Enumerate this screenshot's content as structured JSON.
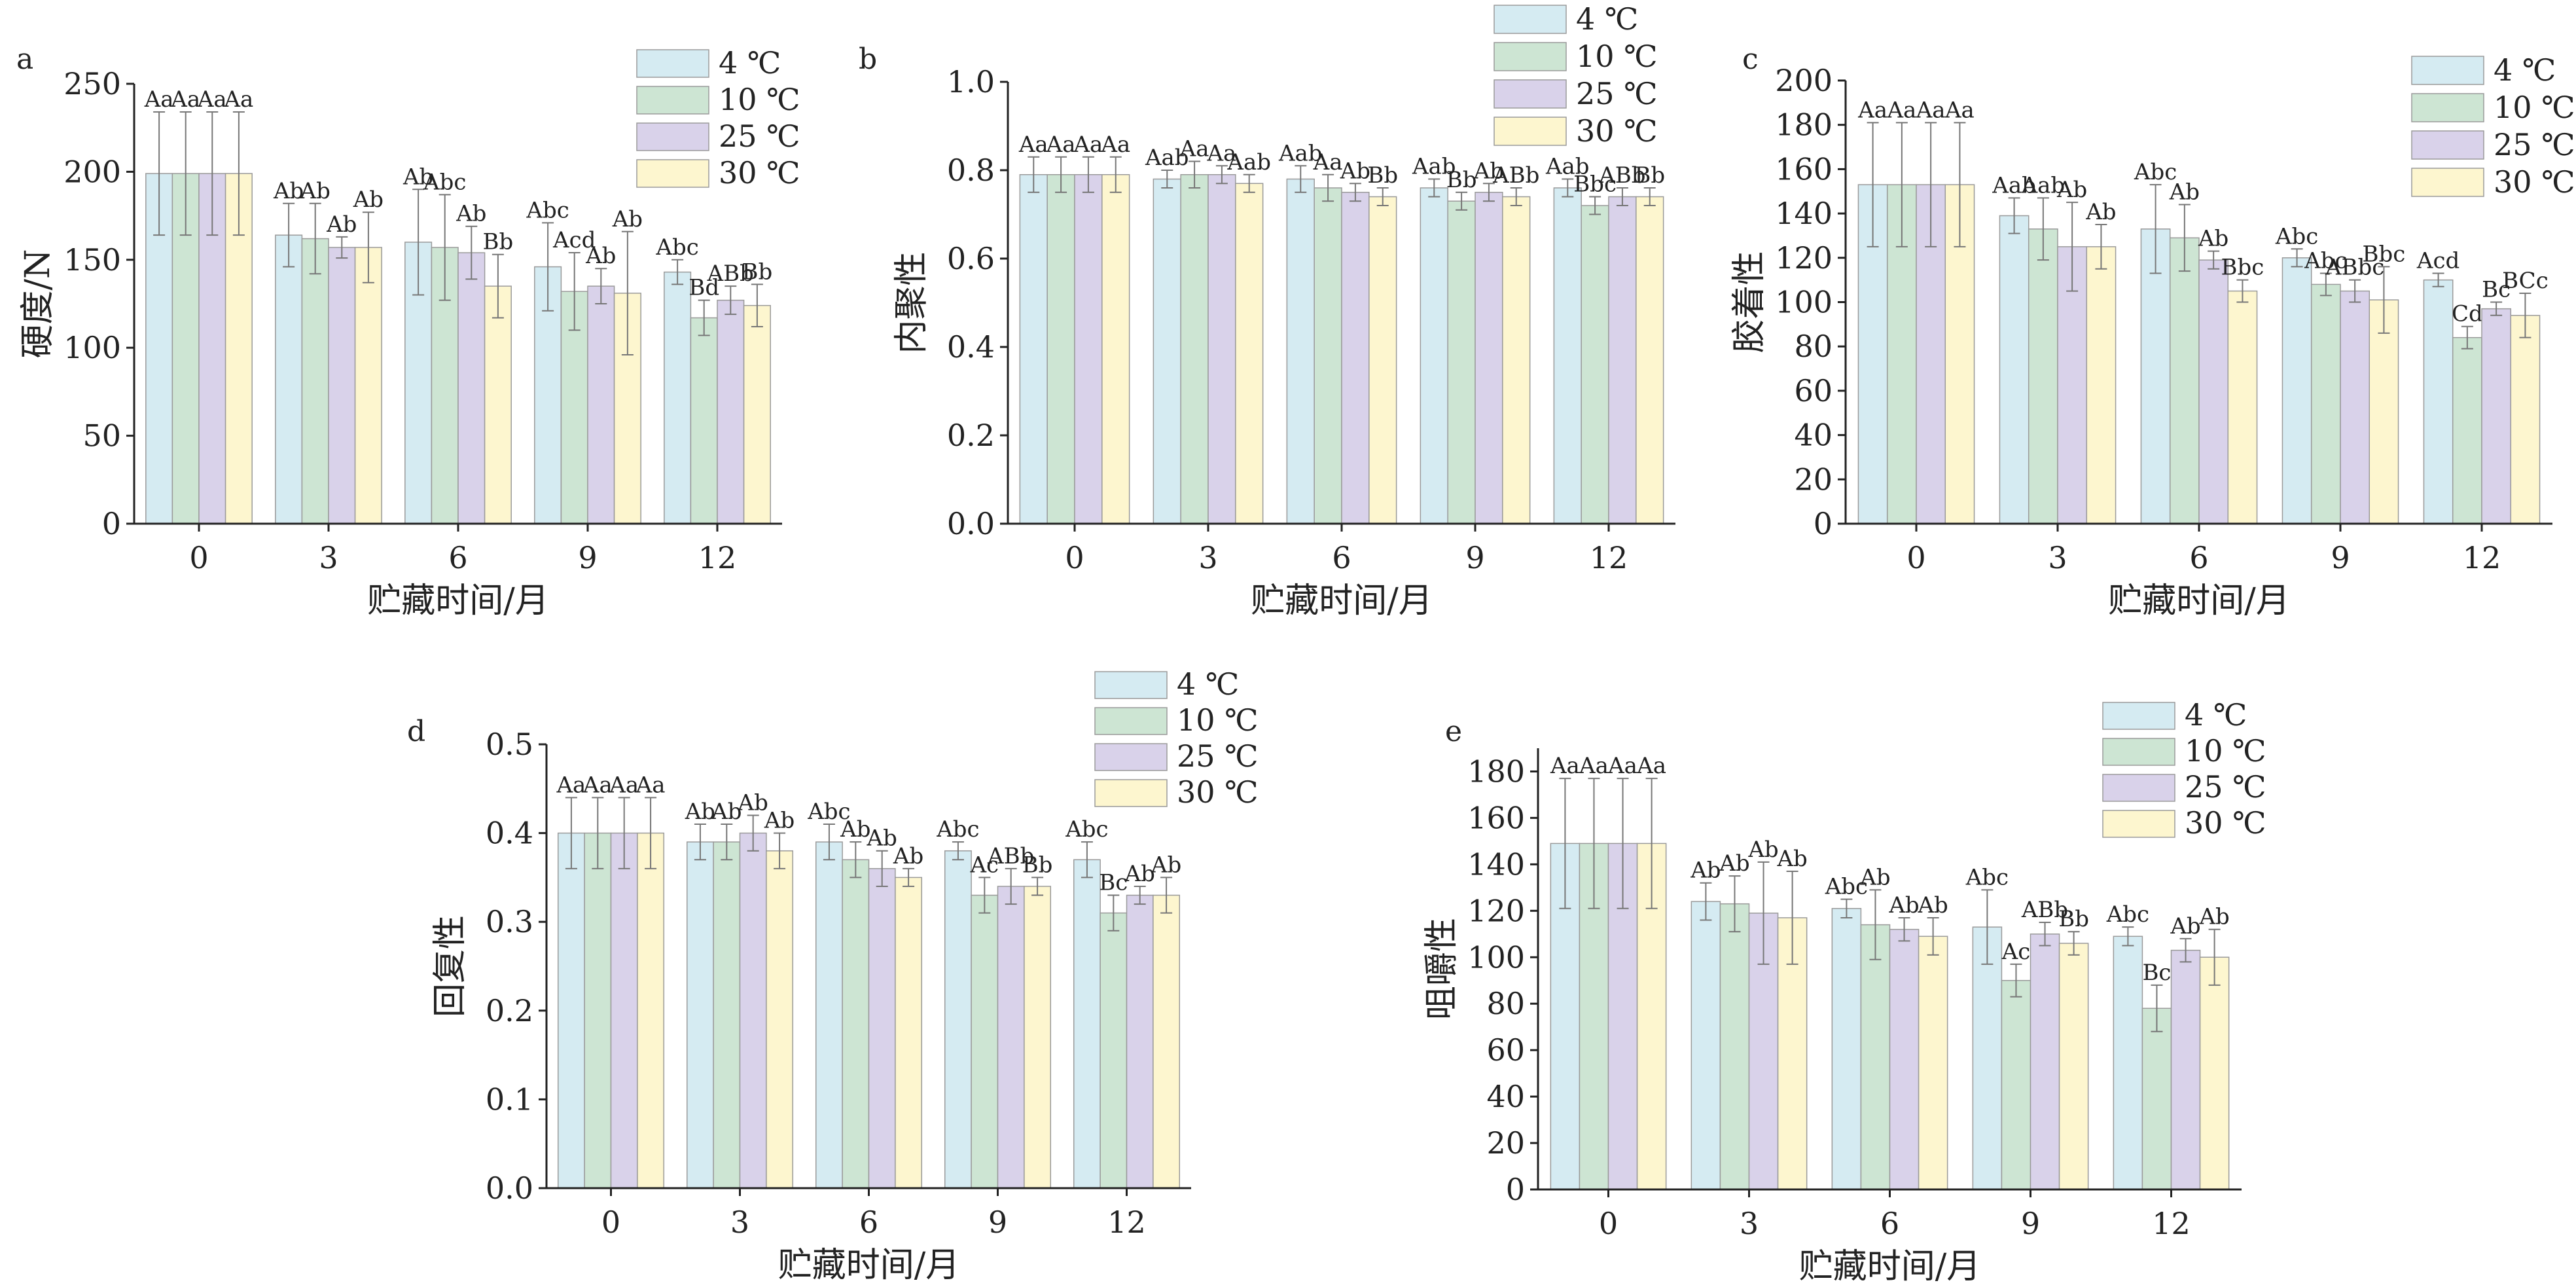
{
  "series_colors": [
    "#d5ebf2",
    "#cde5d3",
    "#d9d2ea",
    "#fdf6cf"
  ],
  "legend": [
    "4 ℃",
    "10 ℃",
    "25 ℃",
    "30 ℃"
  ],
  "chart_data": [
    {
      "panel": "a",
      "type": "bar",
      "ylabel": "硬度/N",
      "xlabel": "贮藏时间/月",
      "categories": [
        "0",
        "3",
        "6",
        "9",
        "12"
      ],
      "ylim": [
        0,
        250
      ],
      "yticks": [
        0,
        50,
        100,
        150,
        200,
        250
      ],
      "series": [
        {
          "name": "4 ℃",
          "values": [
            199,
            164,
            160,
            146,
            143
          ],
          "errors": [
            35,
            18,
            30,
            25,
            7
          ],
          "labels": [
            "Aa",
            "Ab",
            "Ab",
            "Abc",
            "Abc"
          ]
        },
        {
          "name": "10 ℃",
          "values": [
            199,
            162,
            157,
            132,
            117
          ],
          "errors": [
            35,
            20,
            30,
            22,
            10
          ],
          "labels": [
            "Aa",
            "Ab",
            "Abc",
            "Acd",
            "Bd"
          ]
        },
        {
          "name": "25 ℃",
          "values": [
            199,
            157,
            154,
            135,
            127
          ],
          "errors": [
            35,
            6,
            15,
            10,
            8
          ],
          "labels": [
            "Aa",
            "Ab",
            "Ab",
            "Ab",
            "ABb"
          ]
        },
        {
          "name": "30 ℃",
          "values": [
            199,
            157,
            135,
            131,
            124
          ],
          "errors": [
            35,
            20,
            18,
            35,
            12
          ],
          "labels": [
            "Aa",
            "Ab",
            "Bb",
            "Ab",
            "Bb"
          ]
        }
      ]
    },
    {
      "panel": "b",
      "type": "bar",
      "ylabel": "内聚性",
      "xlabel": "贮藏时间/月",
      "categories": [
        "0",
        "3",
        "6",
        "9",
        "12"
      ],
      "ylim": [
        0,
        1.0
      ],
      "yticks": [
        "0.0",
        "0.2",
        "0.4",
        "0.6",
        "0.8",
        "1.0"
      ],
      "series": [
        {
          "name": "4 ℃",
          "values": [
            0.79,
            0.78,
            0.78,
            0.76,
            0.76
          ],
          "errors": [
            0.04,
            0.02,
            0.03,
            0.02,
            0.02
          ],
          "labels": [
            "Aa",
            "Aab",
            "Aab",
            "Aab",
            "Aab"
          ]
        },
        {
          "name": "10 ℃",
          "values": [
            0.79,
            0.79,
            0.76,
            0.73,
            0.72
          ],
          "errors": [
            0.04,
            0.03,
            0.03,
            0.02,
            0.02
          ],
          "labels": [
            "Aa",
            "Aa",
            "Aa",
            "Bb",
            "Bbc"
          ]
        },
        {
          "name": "25 ℃",
          "values": [
            0.79,
            0.79,
            0.75,
            0.75,
            0.74
          ],
          "errors": [
            0.04,
            0.02,
            0.02,
            0.02,
            0.02
          ],
          "labels": [
            "Aa",
            "Aa",
            "Ab",
            "Ab",
            "ABb"
          ]
        },
        {
          "name": "30 ℃",
          "values": [
            0.79,
            0.77,
            0.74,
            0.74,
            0.74
          ],
          "errors": [
            0.04,
            0.02,
            0.02,
            0.02,
            0.02
          ],
          "labels": [
            "Aa",
            "Aab",
            "Bb",
            "ABb",
            "Bb"
          ]
        }
      ]
    },
    {
      "panel": "c",
      "type": "bar",
      "ylabel": "胶着性",
      "xlabel": "贮藏时间/月",
      "categories": [
        "0",
        "3",
        "6",
        "9",
        "12"
      ],
      "ylim": [
        0,
        200
      ],
      "yticks": [
        0,
        20,
        40,
        60,
        80,
        100,
        120,
        140,
        160,
        180,
        200
      ],
      "series": [
        {
          "name": "4 ℃",
          "values": [
            153,
            139,
            133,
            120,
            110
          ],
          "errors": [
            28,
            8,
            20,
            4,
            3
          ],
          "labels": [
            "Aa",
            "Aab",
            "Abc",
            "Abc",
            "Acd"
          ]
        },
        {
          "name": "10 ℃",
          "values": [
            153,
            133,
            129,
            108,
            84
          ],
          "errors": [
            28,
            14,
            15,
            5,
            5
          ],
          "labels": [
            "Aa",
            "Aab",
            "Ab",
            "Abc",
            "Cd"
          ]
        },
        {
          "name": "25 ℃",
          "values": [
            153,
            125,
            119,
            105,
            97
          ],
          "errors": [
            28,
            20,
            4,
            5,
            3
          ],
          "labels": [
            "Aa",
            "Ab",
            "Ab",
            "ABbc",
            "Bc"
          ]
        },
        {
          "name": "30 ℃",
          "values": [
            153,
            125,
            105,
            101,
            94
          ],
          "errors": [
            28,
            10,
            5,
            15,
            10
          ],
          "labels": [
            "Aa",
            "Ab",
            "Bbc",
            "Bbc",
            "BCc"
          ]
        }
      ]
    },
    {
      "panel": "d",
      "type": "bar",
      "ylabel": "回复性",
      "xlabel": "贮藏时间/月",
      "categories": [
        "0",
        "3",
        "6",
        "9",
        "12"
      ],
      "ylim": [
        0,
        0.5
      ],
      "yticks": [
        "0.0",
        "0.1",
        "0.2",
        "0.3",
        "0.4",
        "0.5"
      ],
      "series": [
        {
          "name": "4 ℃",
          "values": [
            0.4,
            0.39,
            0.39,
            0.38,
            0.37
          ],
          "errors": [
            0.04,
            0.02,
            0.02,
            0.01,
            0.02
          ],
          "labels": [
            "Aa",
            "Ab",
            "Abc",
            "Abc",
            "Abc"
          ]
        },
        {
          "name": "10 ℃",
          "values": [
            0.4,
            0.39,
            0.37,
            0.33,
            0.31
          ],
          "errors": [
            0.04,
            0.02,
            0.02,
            0.02,
            0.02
          ],
          "labels": [
            "Aa",
            "Ab",
            "Ab",
            "Ac",
            "Bc"
          ]
        },
        {
          "name": "25 ℃",
          "values": [
            0.4,
            0.4,
            0.36,
            0.34,
            0.33
          ],
          "errors": [
            0.04,
            0.02,
            0.02,
            0.02,
            0.01
          ],
          "labels": [
            "Aa",
            "Ab",
            "Ab",
            "ABb",
            "Ab"
          ]
        },
        {
          "name": "30 ℃",
          "values": [
            0.4,
            0.38,
            0.35,
            0.34,
            0.33
          ],
          "errors": [
            0.04,
            0.02,
            0.01,
            0.01,
            0.02
          ],
          "labels": [
            "Aa",
            "Ab",
            "Ab",
            "Bb",
            "Ab"
          ]
        }
      ]
    },
    {
      "panel": "e",
      "type": "bar",
      "ylabel": "咀嚼性",
      "xlabel": "贮藏时间/月",
      "categories": [
        "0",
        "3",
        "6",
        "9",
        "12"
      ],
      "ylim": [
        0,
        190
      ],
      "yticks": [
        0,
        20,
        40,
        60,
        80,
        100,
        120,
        140,
        160,
        180
      ],
      "series": [
        {
          "name": "4 ℃",
          "values": [
            149,
            124,
            121,
            113,
            109
          ],
          "errors": [
            28,
            8,
            4,
            16,
            4
          ],
          "labels": [
            "Aa",
            "Ab",
            "Abc",
            "Abc",
            "Abc"
          ]
        },
        {
          "name": "10 ℃",
          "values": [
            149,
            123,
            114,
            90,
            78
          ],
          "errors": [
            28,
            12,
            15,
            7,
            10
          ],
          "labels": [
            "Aa",
            "Ab",
            "Ab",
            "Ac",
            "Bc"
          ]
        },
        {
          "name": "25 ℃",
          "values": [
            149,
            119,
            112,
            110,
            103
          ],
          "errors": [
            28,
            22,
            5,
            5,
            5
          ],
          "labels": [
            "Aa",
            "Ab",
            "Ab",
            "ABb",
            "Ab"
          ]
        },
        {
          "name": "30 ℃",
          "values": [
            149,
            117,
            109,
            106,
            100
          ],
          "errors": [
            28,
            20,
            8,
            5,
            12
          ],
          "labels": [
            "Aa",
            "Ab",
            "Ab",
            "Bb",
            "Ab"
          ]
        }
      ]
    }
  ]
}
